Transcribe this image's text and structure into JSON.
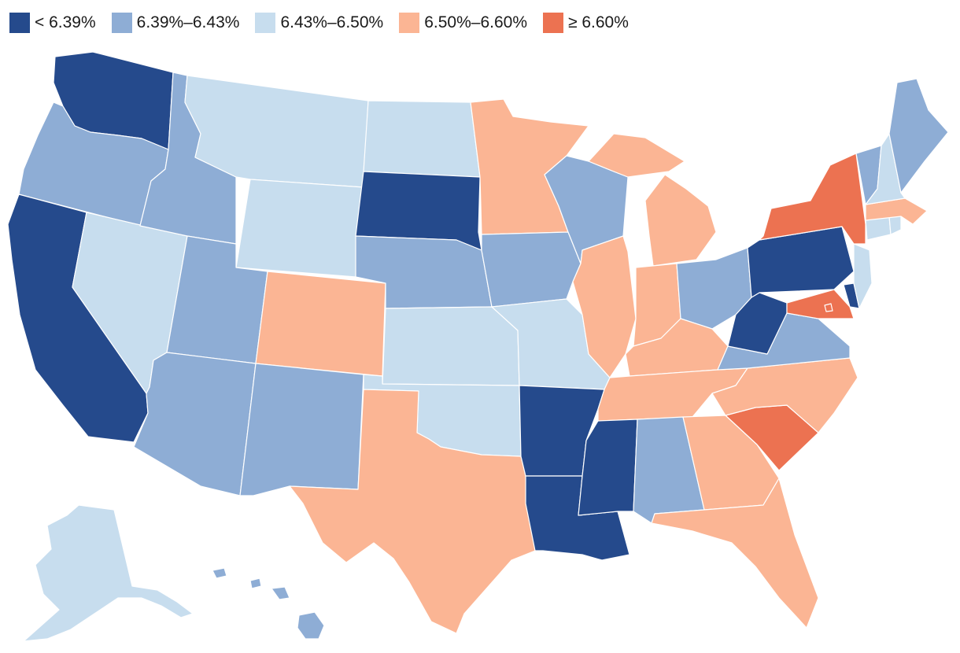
{
  "colors": {
    "bin1": "#254a8c",
    "bin2": "#8eadd5",
    "bin3": "#c7ddee",
    "bin4": "#fbb594",
    "bin5": "#ec7251"
  },
  "legend": [
    {
      "label": "< 6.39%",
      "bin": "bin1"
    },
    {
      "label": "6.39%–6.43%",
      "bin": "bin2"
    },
    {
      "label": "6.43%–6.50%",
      "bin": "bin3"
    },
    {
      "label": "6.50%–6.60%",
      "bin": "bin4"
    },
    {
      "label": "≥ 6.60%",
      "bin": "bin5"
    }
  ],
  "states": {
    "WA": "bin1",
    "OR": "bin2",
    "CA": "bin1",
    "NV": "bin3",
    "ID": "bin2",
    "MT": "bin3",
    "WY": "bin3",
    "UT": "bin2",
    "AZ": "bin2",
    "CO": "bin4",
    "NM": "bin2",
    "ND": "bin3",
    "SD": "bin1",
    "NE": "bin2",
    "KS": "bin3",
    "OK": "bin3",
    "TX": "bin4",
    "MN": "bin4",
    "IA": "bin2",
    "MO": "bin3",
    "AR": "bin1",
    "LA": "bin1",
    "WI": "bin2",
    "IL": "bin4",
    "MI": "bin4",
    "IN": "bin4",
    "OH": "bin2",
    "KY": "bin4",
    "TN": "bin4",
    "MS": "bin1",
    "AL": "bin2",
    "GA": "bin4",
    "FL": "bin4",
    "SC": "bin5",
    "NC": "bin4",
    "VA": "bin2",
    "WV": "bin1",
    "MD": "bin5",
    "DE": "bin1",
    "NJ": "bin3",
    "PA": "bin1",
    "NY": "bin5",
    "CT": "bin3",
    "RI": "bin3",
    "MA": "bin4",
    "VT": "bin2",
    "NH": "bin3",
    "ME": "bin2",
    "AK": "bin3",
    "HI": "bin2",
    "DC": "bin5"
  }
}
